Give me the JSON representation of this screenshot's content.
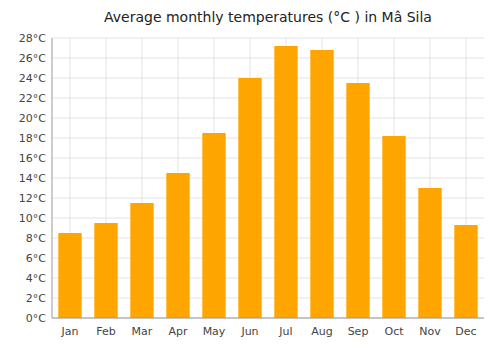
{
  "chart_data": {
    "type": "bar",
    "title": "Average monthly temperatures (°C ) in Mâ Sila",
    "categories": [
      "Jan",
      "Feb",
      "Mar",
      "Apr",
      "May",
      "Jun",
      "Jul",
      "Aug",
      "Sep",
      "Oct",
      "Nov",
      "Dec"
    ],
    "values": [
      8.5,
      9.5,
      11.5,
      14.5,
      18.5,
      24.0,
      27.2,
      26.8,
      23.5,
      18.2,
      13.0,
      9.3
    ],
    "color": "#FFA500",
    "ylim": [
      0,
      28
    ],
    "yticks": [
      {
        "value": 0,
        "label": "0°C"
      },
      {
        "value": 2,
        "label": "2°C"
      },
      {
        "value": 4,
        "label": "4°C"
      },
      {
        "value": 6,
        "label": "6°C"
      },
      {
        "value": 8,
        "label": "8°C"
      },
      {
        "value": 10,
        "label": "10°C"
      },
      {
        "value": 12,
        "label": "12°C"
      },
      {
        "value": 14,
        "label": "14°C"
      },
      {
        "value": 16,
        "label": "16°C"
      },
      {
        "value": 18,
        "label": "18°C"
      },
      {
        "value": 20,
        "label": "20°C"
      },
      {
        "value": 22,
        "label": "22°C"
      },
      {
        "value": 24,
        "label": "24°C"
      },
      {
        "value": 26,
        "label": "26°C"
      },
      {
        "value": 28,
        "label": "28°C"
      }
    ],
    "grid": true
  }
}
